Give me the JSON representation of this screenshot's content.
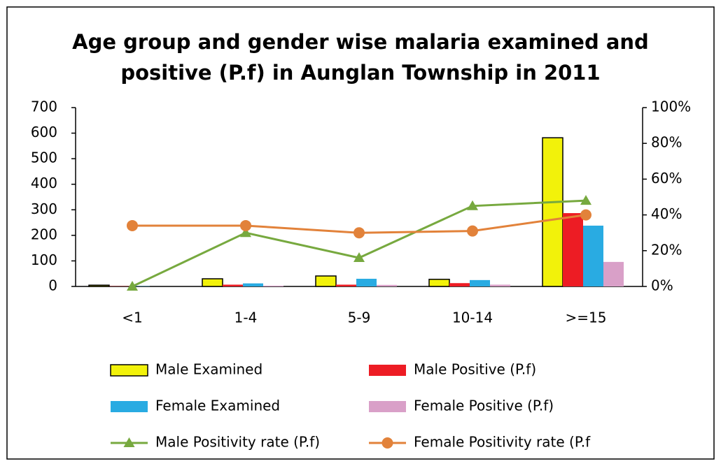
{
  "chart_data": {
    "type": "bar",
    "title": [
      "Age group and gender wise malaria examined and",
      "positive (P.f) in Aunglan Township in 2011"
    ],
    "categories": [
      "<1",
      "1-4",
      "5-9",
      "10-14",
      ">=15"
    ],
    "series": [
      {
        "name": "Male Examined",
        "type": "bar",
        "color": "#f2f20a",
        "values": [
          5,
          30,
          41,
          28,
          582
        ]
      },
      {
        "name": "Male Positive (P.f)",
        "type": "bar",
        "color": "#ed1c24",
        "values": [
          1,
          7,
          7,
          13,
          287
        ]
      },
      {
        "name": "Female Examined",
        "type": "bar",
        "color": "#29abe2",
        "values": [
          1,
          12,
          30,
          25,
          238
        ]
      },
      {
        "name": "Female Positive (P.f)",
        "type": "bar",
        "color": "#d9a0c8",
        "values": [
          0,
          3,
          6,
          7,
          96
        ]
      },
      {
        "name": "Male Positivity rate (P.f)",
        "type": "line",
        "marker": "triangle",
        "axis": "y2",
        "color": "#77a93f",
        "values": [
          0,
          30,
          16,
          45,
          48
        ]
      },
      {
        "name": "Female Positivity rate (P.f",
        "type": "line",
        "marker": "circle",
        "axis": "y2",
        "color": "#e2823a",
        "values": [
          34,
          34,
          30,
          31,
          40
        ]
      }
    ],
    "ylim": [
      0,
      700
    ],
    "yticks": [
      0,
      100,
      200,
      300,
      400,
      500,
      600,
      700
    ],
    "y2lim": [
      0,
      100
    ],
    "y2ticks": [
      {
        "value": 0,
        "label": "0%"
      },
      {
        "value": 20,
        "label": "20%"
      },
      {
        "value": 40,
        "label": "40%"
      },
      {
        "value": 60,
        "label": "60%"
      },
      {
        "value": 80,
        "label": "80%"
      },
      {
        "value": 100,
        "label": "100%"
      }
    ]
  }
}
